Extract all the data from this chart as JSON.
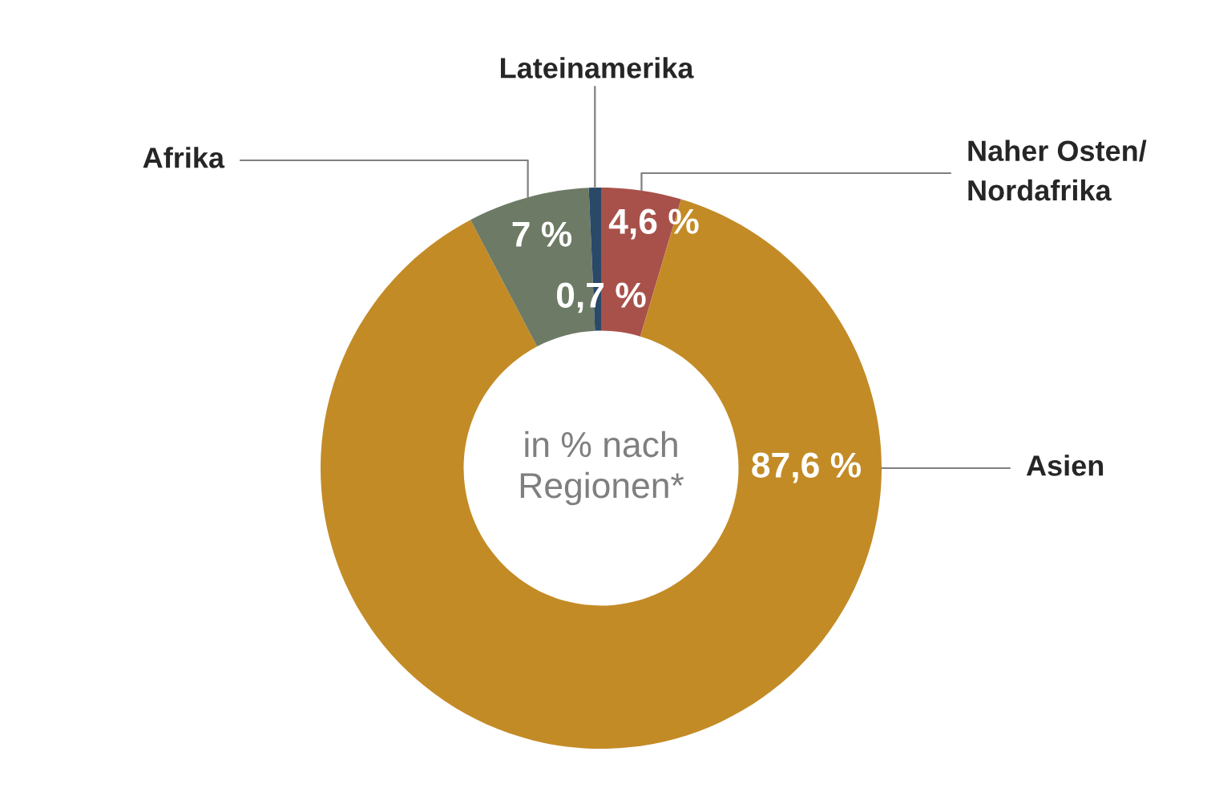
{
  "chart_data": {
    "type": "donut",
    "categories": [
      "Naher Osten/\nNordafrika",
      "Asien",
      "Afrika",
      "Lateinamerika"
    ],
    "values": [
      4.6,
      87.6,
      7,
      0.7
    ],
    "value_labels": [
      "4,6 %",
      "87,6 %",
      "7 %",
      "0,7 %"
    ],
    "colors": [
      "#a8514a",
      "#c38b26",
      "#6d7a65",
      "#2a4868"
    ],
    "annotations": [
      "in % nach\nRegionen*"
    ],
    "legend": false
  }
}
